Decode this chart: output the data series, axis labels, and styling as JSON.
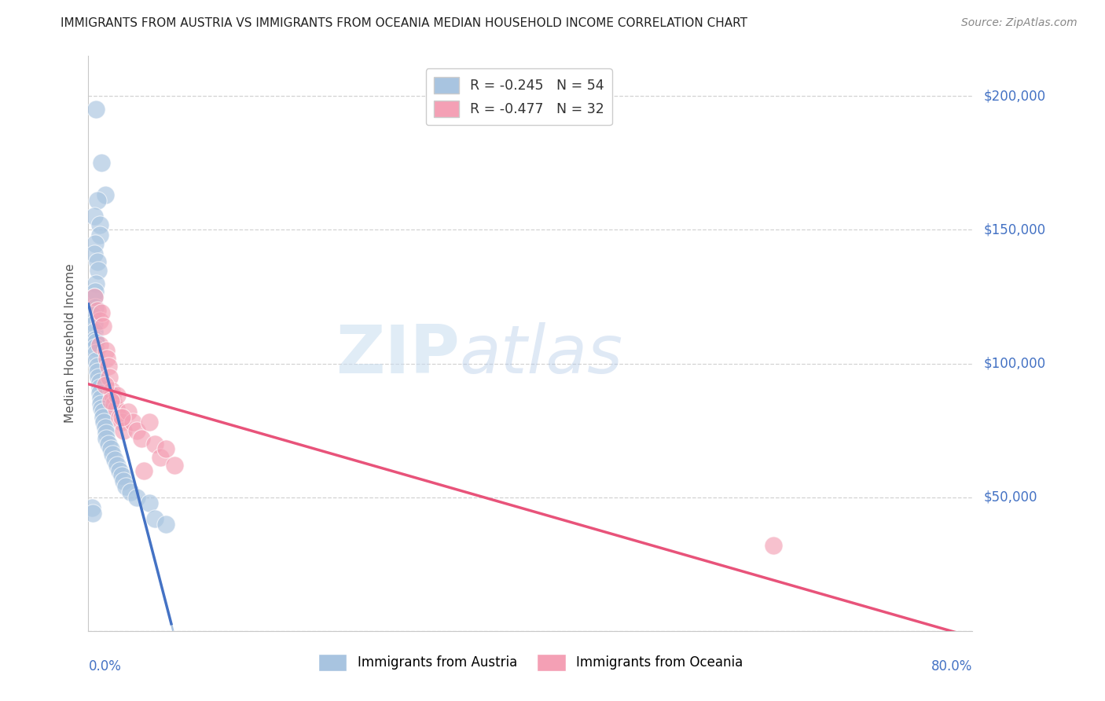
{
  "title": "IMMIGRANTS FROM AUSTRIA VS IMMIGRANTS FROM OCEANIA MEDIAN HOUSEHOLD INCOME CORRELATION CHART",
  "source": "Source: ZipAtlas.com",
  "ylabel": "Median Household Income",
  "yticks": [
    0,
    50000,
    100000,
    150000,
    200000
  ],
  "ytick_labels": [
    "",
    "$50,000",
    "$100,000",
    "$150,000",
    "$200,000"
  ],
  "xmin": 0.0,
  "xmax": 0.8,
  "ymin": 0,
  "ymax": 215000,
  "austria_x": [
    0.007,
    0.012,
    0.015,
    0.008,
    0.005,
    0.01,
    0.01,
    0.006,
    0.005,
    0.008,
    0.009,
    0.007,
    0.006,
    0.005,
    0.006,
    0.004,
    0.005,
    0.005,
    0.006,
    0.007,
    0.006,
    0.007,
    0.007,
    0.008,
    0.008,
    0.009,
    0.01,
    0.01,
    0.01,
    0.011,
    0.011,
    0.012,
    0.013,
    0.013,
    0.014,
    0.015,
    0.016,
    0.016,
    0.018,
    0.02,
    0.022,
    0.024,
    0.026,
    0.028,
    0.03,
    0.032,
    0.034,
    0.038,
    0.044,
    0.055,
    0.003,
    0.004,
    0.06,
    0.07
  ],
  "austria_y": [
    195000,
    175000,
    163000,
    161000,
    155000,
    152000,
    148000,
    145000,
    141000,
    138000,
    135000,
    130000,
    127000,
    125000,
    121000,
    118000,
    115000,
    112000,
    109000,
    108000,
    106000,
    104000,
    101000,
    99000,
    97000,
    95000,
    93000,
    91000,
    89000,
    87000,
    85000,
    83000,
    82000,
    80000,
    78000,
    76000,
    74000,
    72000,
    70000,
    68000,
    66000,
    64000,
    62000,
    60000,
    58000,
    56000,
    54000,
    52000,
    50000,
    48000,
    46000,
    44000,
    42000,
    40000
  ],
  "oceania_x": [
    0.005,
    0.008,
    0.01,
    0.01,
    0.012,
    0.013,
    0.016,
    0.017,
    0.018,
    0.019,
    0.021,
    0.022,
    0.023,
    0.025,
    0.026,
    0.028,
    0.03,
    0.032,
    0.036,
    0.04,
    0.044,
    0.048,
    0.055,
    0.06,
    0.065,
    0.07,
    0.078,
    0.62,
    0.015,
    0.02,
    0.03,
    0.05
  ],
  "oceania_y": [
    125000,
    120000,
    116000,
    107000,
    119000,
    114000,
    105000,
    102000,
    99000,
    95000,
    90000,
    88000,
    85000,
    83000,
    88000,
    80000,
    78000,
    75000,
    82000,
    78000,
    75000,
    72000,
    78000,
    70000,
    65000,
    68000,
    62000,
    32000,
    92000,
    86000,
    80000,
    60000
  ],
  "blue_line_color": "#4472c4",
  "pink_line_color": "#e8537a",
  "blue_dash_color": "#aac4e0",
  "blue_scatter_color": "#a8c4e0",
  "pink_scatter_color": "#f4a0b5",
  "axis_label_color": "#4472c4",
  "grid_color": "#c8c8c8",
  "background_color": "#ffffff",
  "blue_solid_xend": 0.075,
  "blue_dash_xstart": 0.075,
  "blue_dash_xend": 0.22
}
